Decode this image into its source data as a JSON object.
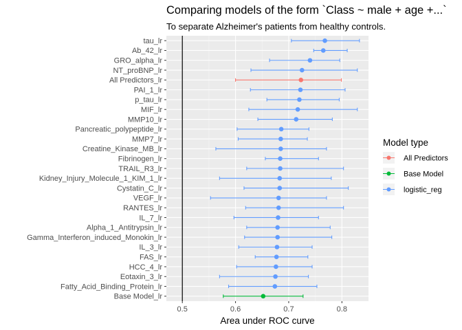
{
  "chart_data": {
    "type": "errorbar",
    "title": "Comparing models of the form `Class ~ male + age +...`",
    "subtitle": "To separate Alzheimer's patients from healthy controls.",
    "xlabel": "Area under ROC curve",
    "ylabel": "",
    "xlim": [
      0.47,
      0.85
    ],
    "xticks": [
      0.5,
      0.6,
      0.7,
      0.8
    ],
    "reference_line": 0.5,
    "legend": {
      "title": "Model type",
      "placement": "right",
      "entries": [
        {
          "name": "All Predictors",
          "color": "#F8766D"
        },
        {
          "name": "Base Model",
          "color": "#00BA38"
        },
        {
          "name": "logistic_reg",
          "color": "#619CFF"
        }
      ]
    },
    "points": [
      {
        "label": "tau_lr",
        "estimate": 0.768,
        "low": 0.705,
        "high": 0.833,
        "type": "logistic_reg"
      },
      {
        "label": "Ab_42_lr",
        "estimate": 0.765,
        "low": 0.747,
        "high": 0.81,
        "type": "logistic_reg"
      },
      {
        "label": "GRO_alpha_lr",
        "estimate": 0.74,
        "low": 0.664,
        "high": 0.796,
        "type": "logistic_reg"
      },
      {
        "label": "NT_proBNP_lr",
        "estimate": 0.725,
        "low": 0.629,
        "high": 0.829,
        "type": "logistic_reg"
      },
      {
        "label": "All Predictors_lr",
        "estimate": 0.723,
        "low": 0.6,
        "high": 0.799,
        "type": "All Predictors"
      },
      {
        "label": "PAI_1_lr",
        "estimate": 0.722,
        "low": 0.628,
        "high": 0.806,
        "type": "logistic_reg"
      },
      {
        "label": "p_tau_lr",
        "estimate": 0.72,
        "low": 0.659,
        "high": 0.795,
        "type": "logistic_reg"
      },
      {
        "label": "MIF_lr",
        "estimate": 0.717,
        "low": 0.625,
        "high": 0.829,
        "type": "logistic_reg"
      },
      {
        "label": "MMP10_lr",
        "estimate": 0.714,
        "low": 0.642,
        "high": 0.782,
        "type": "logistic_reg"
      },
      {
        "label": "Pancreatic_polypeptide_lr",
        "estimate": 0.686,
        "low": 0.603,
        "high": 0.738,
        "type": "logistic_reg"
      },
      {
        "label": "MMP7_lr",
        "estimate": 0.685,
        "low": 0.605,
        "high": 0.735,
        "type": "logistic_reg"
      },
      {
        "label": "Creatine_Kinase_MB_lr",
        "estimate": 0.685,
        "low": 0.563,
        "high": 0.771,
        "type": "logistic_reg"
      },
      {
        "label": "Fibrinogen_lr",
        "estimate": 0.684,
        "low": 0.656,
        "high": 0.756,
        "type": "logistic_reg"
      },
      {
        "label": "TRAIL_R3_lr",
        "estimate": 0.684,
        "low": 0.621,
        "high": 0.803,
        "type": "logistic_reg"
      },
      {
        "label": "Kidney_Injury_Molecule_1_KIM_1_lr",
        "estimate": 0.683,
        "low": 0.57,
        "high": 0.78,
        "type": "logistic_reg"
      },
      {
        "label": "Cystatin_C_lr",
        "estimate": 0.683,
        "low": 0.616,
        "high": 0.812,
        "type": "logistic_reg"
      },
      {
        "label": "VEGF_lr",
        "estimate": 0.681,
        "low": 0.553,
        "high": 0.771,
        "type": "logistic_reg"
      },
      {
        "label": "RANTES_lr",
        "estimate": 0.681,
        "low": 0.619,
        "high": 0.803,
        "type": "logistic_reg"
      },
      {
        "label": "IL_7_lr",
        "estimate": 0.68,
        "low": 0.597,
        "high": 0.756,
        "type": "logistic_reg"
      },
      {
        "label": "Alpha_1_Antitrypsin_lr",
        "estimate": 0.679,
        "low": 0.621,
        "high": 0.778,
        "type": "logistic_reg"
      },
      {
        "label": "Gamma_Interferon_induced_Monokin_lr",
        "estimate": 0.679,
        "low": 0.617,
        "high": 0.781,
        "type": "logistic_reg"
      },
      {
        "label": "IL_3_lr",
        "estimate": 0.678,
        "low": 0.606,
        "high": 0.744,
        "type": "logistic_reg"
      },
      {
        "label": "FAS_lr",
        "estimate": 0.677,
        "low": 0.637,
        "high": 0.736,
        "type": "logistic_reg"
      },
      {
        "label": "HCC_4_lr",
        "estimate": 0.676,
        "low": 0.602,
        "high": 0.744,
        "type": "logistic_reg"
      },
      {
        "label": "Eotaxin_3_lr",
        "estimate": 0.675,
        "low": 0.57,
        "high": 0.737,
        "type": "logistic_reg"
      },
      {
        "label": "Fatty_Acid_Binding_Protein_lr",
        "estimate": 0.674,
        "low": 0.587,
        "high": 0.753,
        "type": "logistic_reg"
      },
      {
        "label": "Base Model_lr",
        "estimate": 0.652,
        "low": 0.577,
        "high": 0.727,
        "type": "Base Model"
      }
    ]
  }
}
